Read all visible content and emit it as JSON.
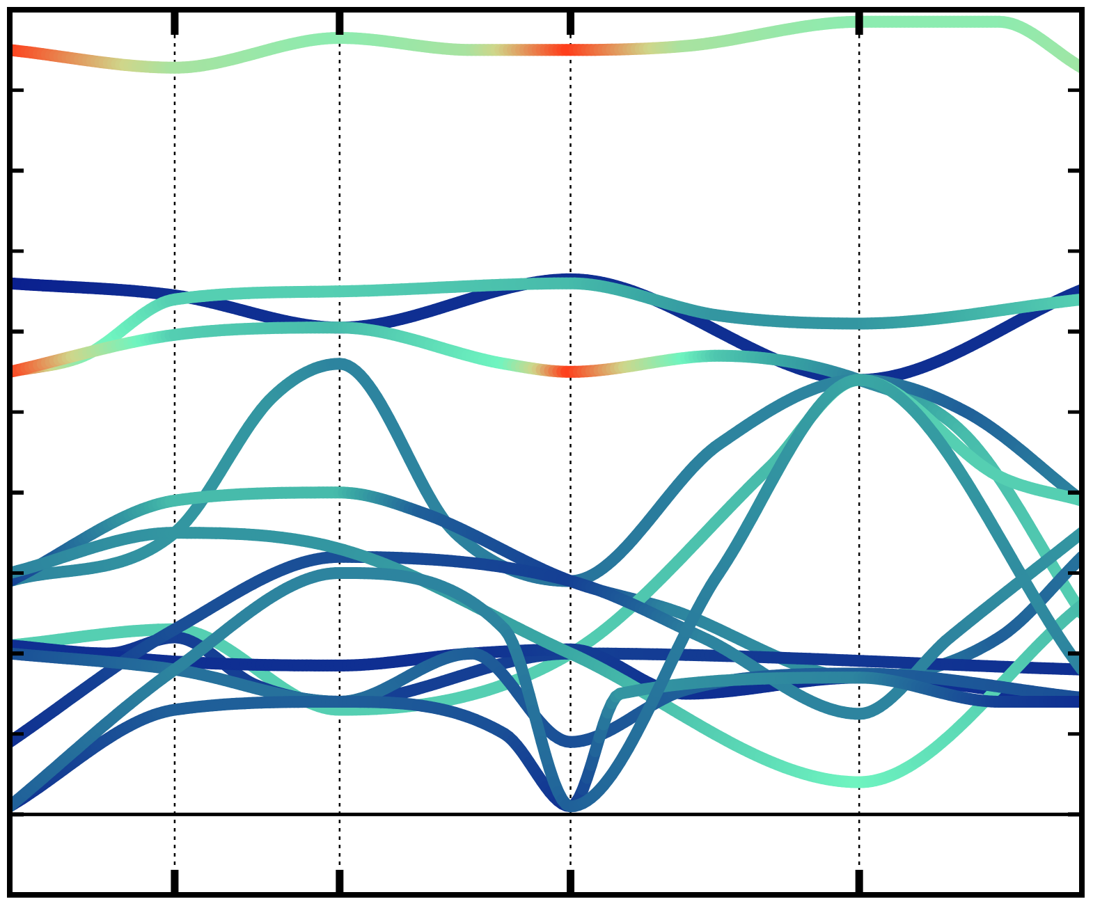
{
  "chart_data": {
    "type": "line",
    "title": "",
    "xlabel": "",
    "ylabel": "",
    "xlim": [
      0,
      6.5
    ],
    "ylim": [
      -1,
      10
    ],
    "zero_line": 0,
    "grid": false,
    "legend": "none",
    "high_symmetry_points": [
      1.0,
      2.0,
      3.4,
      5.15
    ],
    "colorscale": [
      "#0a1f8f",
      "#1f5f99",
      "#3aa8a4",
      "#6ff5c0",
      "#cfd68a",
      "#ff3a18"
    ],
    "series": [
      {
        "x": [
          0,
          1.0,
          2.0,
          2.8,
          3.4,
          4.1,
          5.15,
          6.0,
          6.5
        ],
        "values": [
          9.5,
          9.28,
          9.65,
          9.5,
          9.5,
          9.55,
          9.85,
          9.85,
          9.28
        ],
        "weights": [
          1.0,
          0.72,
          0.66,
          0.72,
          1.0,
          0.72,
          0.66,
          0.66,
          0.7
        ]
      },
      {
        "x": [
          0,
          1.0,
          2.0,
          3.4,
          5.15,
          6.5
        ],
        "values": [
          6.6,
          6.45,
          6.05,
          6.65,
          5.4,
          6.52
        ],
        "weights": [
          0.0,
          0.05,
          0.05,
          0.05,
          0.05,
          0.05
        ]
      },
      {
        "x": [
          0,
          0.45,
          1.0,
          2.0,
          3.4,
          4.3,
          5.15,
          6.5
        ],
        "values": [
          5.5,
          5.7,
          6.4,
          6.5,
          6.6,
          6.2,
          6.1,
          6.4
        ],
        "weights": [
          1.0,
          0.65,
          0.5,
          0.5,
          0.45,
          0.35,
          0.35,
          0.5
        ]
      },
      {
        "x": [
          0,
          1.0,
          2.0,
          3.0,
          3.4,
          4.3,
          5.15,
          5.8,
          6.5
        ],
        "values": [
          5.5,
          5.96,
          6.05,
          5.6,
          5.5,
          5.7,
          5.4,
          4.7,
          2.5
        ],
        "weights": [
          1.0,
          0.5,
          0.45,
          0.6,
          1.0,
          0.48,
          0.3,
          0.45,
          0.5
        ]
      },
      {
        "x": [
          0,
          1.0,
          1.6,
          2.0,
          2.7,
          3.4,
          4.3,
          5.15,
          5.8,
          6.5
        ],
        "values": [
          2.9,
          3.5,
          5.2,
          5.6,
          3.5,
          2.9,
          4.6,
          5.4,
          5.0,
          3.9
        ],
        "weights": [
          0.3,
          0.35,
          0.35,
          0.3,
          0.3,
          0.25,
          0.3,
          0.3,
          0.2,
          0.3
        ]
      },
      {
        "x": [
          0,
          1.0,
          2.0,
          2.5,
          3.4,
          4.0,
          5.15,
          6.0,
          6.5
        ],
        "values": [
          2.9,
          3.9,
          4.0,
          3.75,
          2.9,
          2.55,
          1.7,
          2.2,
          3.2
        ],
        "weights": [
          0.1,
          0.45,
          0.45,
          0.2,
          0.1,
          0.3,
          0.35,
          0.2,
          0.25
        ]
      },
      {
        "x": [
          0,
          1.0,
          2.0,
          3.4,
          4.6,
          5.15,
          6.0,
          6.5
        ],
        "values": [
          2.1,
          2.3,
          1.3,
          2.0,
          4.3,
          5.4,
          4.2,
          3.9
        ],
        "weights": [
          0.5,
          0.5,
          0.5,
          0.5,
          0.45,
          0.5,
          0.5,
          0.5
        ]
      },
      {
        "x": [
          0,
          0.6,
          1.0,
          1.5,
          2.0,
          3.4,
          6.5
        ],
        "values": [
          2.1,
          2.0,
          2.2,
          1.6,
          1.4,
          2.0,
          1.8
        ],
        "weights": [
          0.05,
          0.05,
          0.1,
          0.1,
          0.1,
          0.1,
          0.05
        ]
      },
      {
        "x": [
          0,
          1.0,
          2.0,
          2.8,
          3.4,
          4.1,
          5.15,
          6.5
        ],
        "values": [
          2.1,
          1.9,
          1.85,
          2.0,
          2.05,
          1.5,
          1.7,
          1.4
        ],
        "weights": [
          0.05,
          0.05,
          0.05,
          0.05,
          0.1,
          0.05,
          0.05,
          0.05
        ]
      },
      {
        "x": [
          0,
          1.0,
          2.0,
          3.4,
          4.2,
          5.15,
          5.7,
          6.5
        ],
        "values": [
          0.9,
          2.3,
          3.2,
          2.9,
          2.2,
          1.25,
          2.2,
          3.5
        ],
        "weights": [
          0.05,
          0.15,
          0.15,
          0.1,
          0.3,
          0.3,
          0.3,
          0.35
        ]
      },
      {
        "x": [
          0,
          1.0,
          2.0,
          3.4,
          5.15,
          6.5
        ],
        "values": [
          3.0,
          3.5,
          3.3,
          2.0,
          0.4,
          2.6
        ],
        "weights": [
          0.3,
          0.35,
          0.35,
          0.4,
          0.6,
          0.45
        ]
      },
      {
        "x": [
          0,
          1.0,
          2.0,
          2.8,
          3.4,
          4.1,
          5.15,
          6.5
        ],
        "values": [
          2.0,
          1.8,
          1.4,
          2.0,
          0.9,
          1.55,
          1.75,
          1.45
        ],
        "weights": [
          0.15,
          0.25,
          0.25,
          0.2,
          0.15,
          0.2,
          0.2,
          0.15
        ]
      },
      {
        "x": [
          0,
          1.0,
          2.0,
          3.0,
          3.4,
          3.7,
          5.15,
          6.0,
          6.5
        ],
        "values": [
          0.1,
          1.3,
          1.4,
          1.0,
          0.1,
          1.5,
          1.7,
          1.4,
          1.4
        ],
        "weights": [
          0.05,
          0.2,
          0.2,
          0.15,
          0.05,
          0.35,
          0.3,
          0.1,
          0.05
        ]
      },
      {
        "x": [
          0,
          1.0,
          2.0,
          3.0,
          3.4,
          4.3,
          5.15,
          6.5
        ],
        "values": [
          0.1,
          1.8,
          3.0,
          2.3,
          0.1,
          3.0,
          5.4,
          1.8
        ],
        "weights": [
          0.2,
          0.3,
          0.3,
          0.3,
          0.2,
          0.3,
          0.4,
          0.3
        ]
      }
    ]
  }
}
